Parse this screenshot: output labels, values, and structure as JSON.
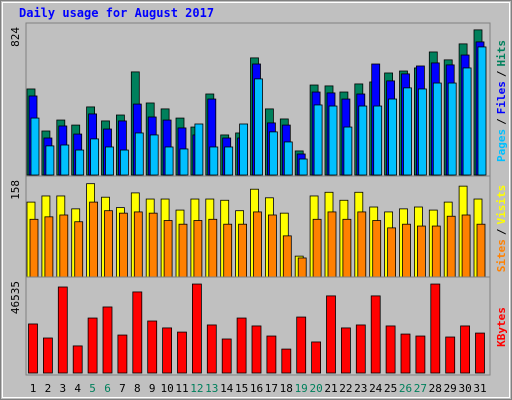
{
  "chart_data": {
    "type": "bar",
    "title": "Daily usage for August 2017",
    "categories": [
      "1",
      "2",
      "3",
      "4",
      "5",
      "6",
      "7",
      "8",
      "9",
      "10",
      "11",
      "12",
      "13",
      "14",
      "15",
      "16",
      "17",
      "18",
      "19",
      "20",
      "21",
      "22",
      "23",
      "24",
      "25",
      "26",
      "27",
      "28",
      "29",
      "30",
      "31"
    ],
    "category_colors": [
      "#000000",
      "#000000",
      "#000000",
      "#000000",
      "#00805c",
      "#00805c",
      "#000000",
      "#000000",
      "#000000",
      "#000000",
      "#000000",
      "#00805c",
      "#00805c",
      "#000000",
      "#000000",
      "#000000",
      "#000000",
      "#000000",
      "#00805c",
      "#00805c",
      "#000000",
      "#000000",
      "#000000",
      "#000000",
      "#000000",
      "#00805c",
      "#00805c",
      "#000000",
      "#000000",
      "#000000",
      "#000000"
    ],
    "legend_separator": "/",
    "panels": [
      {
        "ylim": [
          0,
          824
        ],
        "yticks": [
          824
        ],
        "series": [
          {
            "name": "Hits",
            "color": "#00805c",
            "values": [
              479,
              245,
              306,
              278,
              379,
              301,
              334,
              574,
              401,
              368,
              317,
              267,
              451,
              223,
              234,
              652,
              368,
              312,
              134,
              501,
              496,
              462,
              507,
              518,
              568,
              579,
              596,
              685,
              641,
              730,
              808
            ]
          },
          {
            "name": "Files",
            "color": "#0000ff",
            "values": [
              440,
              206,
              273,
              228,
              340,
              256,
              301,
              395,
              323,
              306,
              262,
              223,
              423,
              206,
              206,
              618,
              290,
              278,
              117,
              462,
              457,
              423,
              451,
              618,
              524,
              563,
              607,
              624,
              613,
              668,
              741
            ]
          },
          {
            "name": "Pages",
            "color": "#00c0ff",
            "values": [
              317,
              162,
              167,
              139,
              201,
              156,
              139,
              234,
              223,
              156,
              145,
              284,
              156,
              156,
              284,
              535,
              240,
              184,
              89,
              390,
              384,
              267,
              384,
              384,
              423,
              485,
              479,
              512,
              512,
              596,
              713
            ]
          }
        ]
      },
      {
        "ylim": [
          0,
          158
        ],
        "yticks": [
          158
        ],
        "series": [
          {
            "name": "Visits",
            "color": "#ffff00",
            "values": [
              122,
              132,
              132,
              111,
              152,
              130,
              113,
              137,
              127,
              127,
              109,
              127,
              127,
              125,
              108,
              143,
              129,
              104,
              34,
              132,
              138,
              125,
              138,
              114,
              106,
              111,
              114,
              109,
              122,
              148,
              127
            ]
          },
          {
            "name": "Sites",
            "color": "#ff8000",
            "values": [
              94,
              98,
              101,
              90,
              122,
              108,
              104,
              106,
              104,
              92,
              86,
              92,
              94,
              86,
              86,
              106,
              101,
              67,
              31,
              94,
              106,
              94,
              106,
              92,
              80,
              86,
              83,
              83,
              99,
              101,
              86
            ]
          }
        ]
      },
      {
        "ylim": [
          0,
          46535
        ],
        "yticks": [
          46535
        ],
        "series": [
          {
            "name": "KBytes",
            "color": "#ff0000",
            "values": [
              24800,
              17700,
              43500,
              13700,
              27800,
              33400,
              19200,
              41000,
              26300,
              22800,
              20700,
              45000,
              24300,
              17200,
              27800,
              23800,
              18700,
              12100,
              28300,
              15700,
              39000,
              22800,
              24300,
              39000,
              23800,
              19700,
              18700,
              45000,
              18200,
              23800,
              20200
            ]
          }
        ]
      }
    ]
  }
}
